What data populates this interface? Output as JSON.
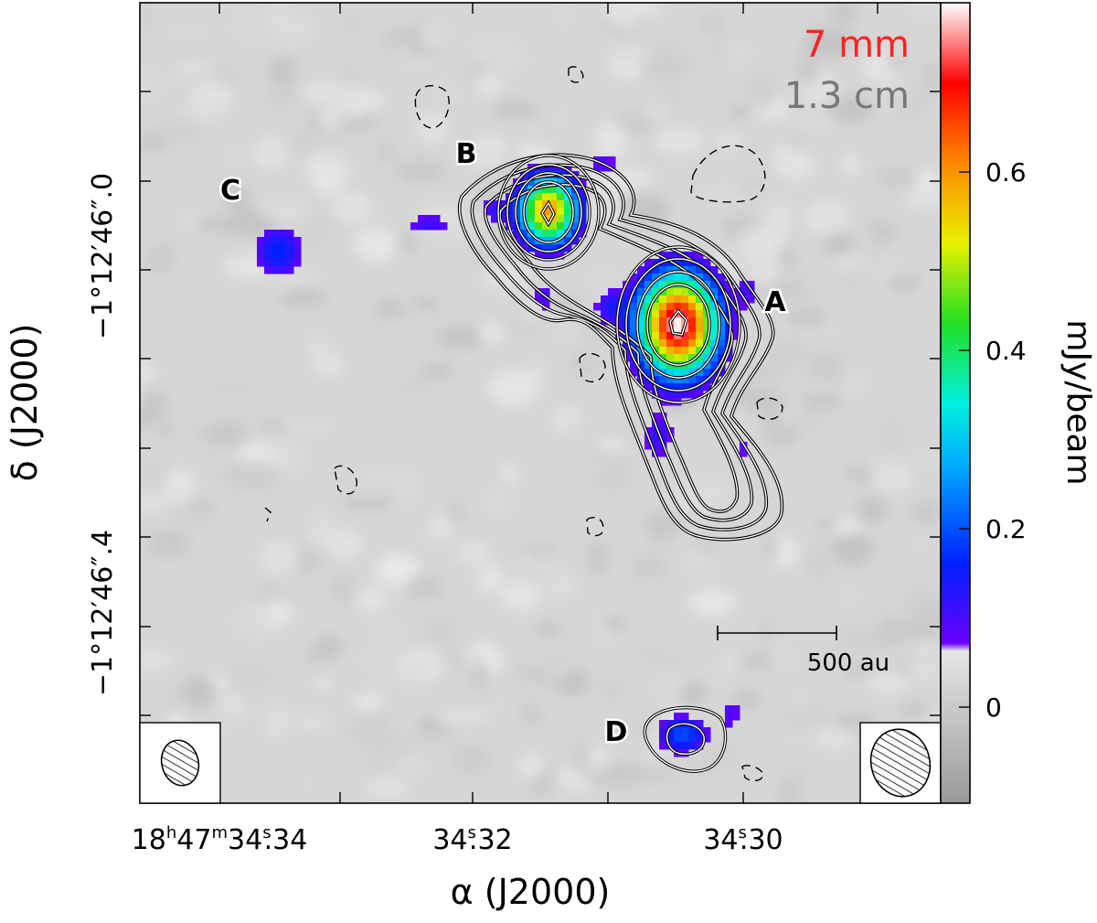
{
  "legend": {
    "band1": "7 mm",
    "band1_color": "#ff2222",
    "band2": "1.3 cm",
    "band2_color": "#777777"
  },
  "axes": {
    "x_label": "α (J2000)",
    "y_label": "δ (J2000)",
    "x_ticks": [
      {
        "h": "18",
        "m": "47",
        "s": "34",
        "frac": ".34"
      },
      {
        "h": "",
        "m": "",
        "s": "34",
        "frac": ".32"
      },
      {
        "h": "",
        "m": "",
        "s": "34",
        "frac": ".30"
      }
    ],
    "y_ticks": [
      "−1°12′46″.0",
      "−1°12′46″.4"
    ]
  },
  "colorbar": {
    "label": "mJy/beam",
    "ticks": [
      "0.6",
      "0.4",
      "0.2",
      "0"
    ],
    "min": -0.1,
    "max": 0.78,
    "threshold": 0.075,
    "colors": {
      "purple": "#6a00ff",
      "blue": "#0030ff",
      "cyan": "#00e5ff",
      "green": "#22dd22",
      "yellow": "#f5f500",
      "orange": "#ff8800",
      "red": "#ff0000",
      "white": "#ffffff"
    }
  },
  "scale_bar": {
    "label": "500 au"
  },
  "sources": [
    {
      "id": "A",
      "label": "A",
      "peak": 0.78
    },
    {
      "id": "B",
      "label": "B",
      "peak": 0.6
    },
    {
      "id": "C",
      "label": "C",
      "peak": 0.15
    },
    {
      "id": "D",
      "label": "D",
      "peak": 0.18
    }
  ]
}
